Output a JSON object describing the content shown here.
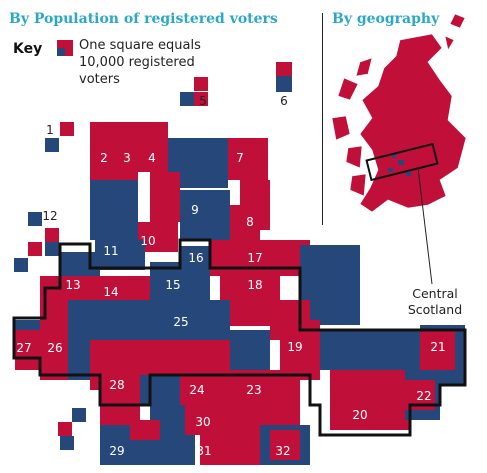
{
  "headers": {
    "left": "By Population of registered voters",
    "right": "By geography"
  },
  "key": {
    "label": "Key",
    "text": "One square equals 10,000 registered voters"
  },
  "callout": {
    "line1": "Central",
    "line2": "Scotland"
  },
  "colors": {
    "red": "#c0103a",
    "blue": "#26477a",
    "accent": "#2aa8c8",
    "outline": "#111111"
  },
  "regions": [
    {
      "id": "1",
      "label": "1"
    },
    {
      "id": "2",
      "label": "2"
    },
    {
      "id": "3",
      "label": "3"
    },
    {
      "id": "4",
      "label": "4"
    },
    {
      "id": "5",
      "label": "5"
    },
    {
      "id": "6",
      "label": "6"
    },
    {
      "id": "7",
      "label": "7"
    },
    {
      "id": "8",
      "label": "8"
    },
    {
      "id": "9",
      "label": "9"
    },
    {
      "id": "10",
      "label": "10"
    },
    {
      "id": "11",
      "label": "11"
    },
    {
      "id": "12",
      "label": "12"
    },
    {
      "id": "13",
      "label": "13"
    },
    {
      "id": "14",
      "label": "14"
    },
    {
      "id": "15",
      "label": "15"
    },
    {
      "id": "16",
      "label": "16"
    },
    {
      "id": "17",
      "label": "17"
    },
    {
      "id": "18",
      "label": "18"
    },
    {
      "id": "19",
      "label": "19"
    },
    {
      "id": "20",
      "label": "20"
    },
    {
      "id": "21",
      "label": "21"
    },
    {
      "id": "22",
      "label": "22"
    },
    {
      "id": "23",
      "label": "23"
    },
    {
      "id": "24",
      "label": "24"
    },
    {
      "id": "25",
      "label": "25"
    },
    {
      "id": "26",
      "label": "26"
    },
    {
      "id": "27",
      "label": "27"
    },
    {
      "id": "28",
      "label": "28"
    },
    {
      "id": "29",
      "label": "29"
    },
    {
      "id": "30",
      "label": "30"
    },
    {
      "id": "31",
      "label": "31"
    },
    {
      "id": "32",
      "label": "32"
    }
  ]
}
